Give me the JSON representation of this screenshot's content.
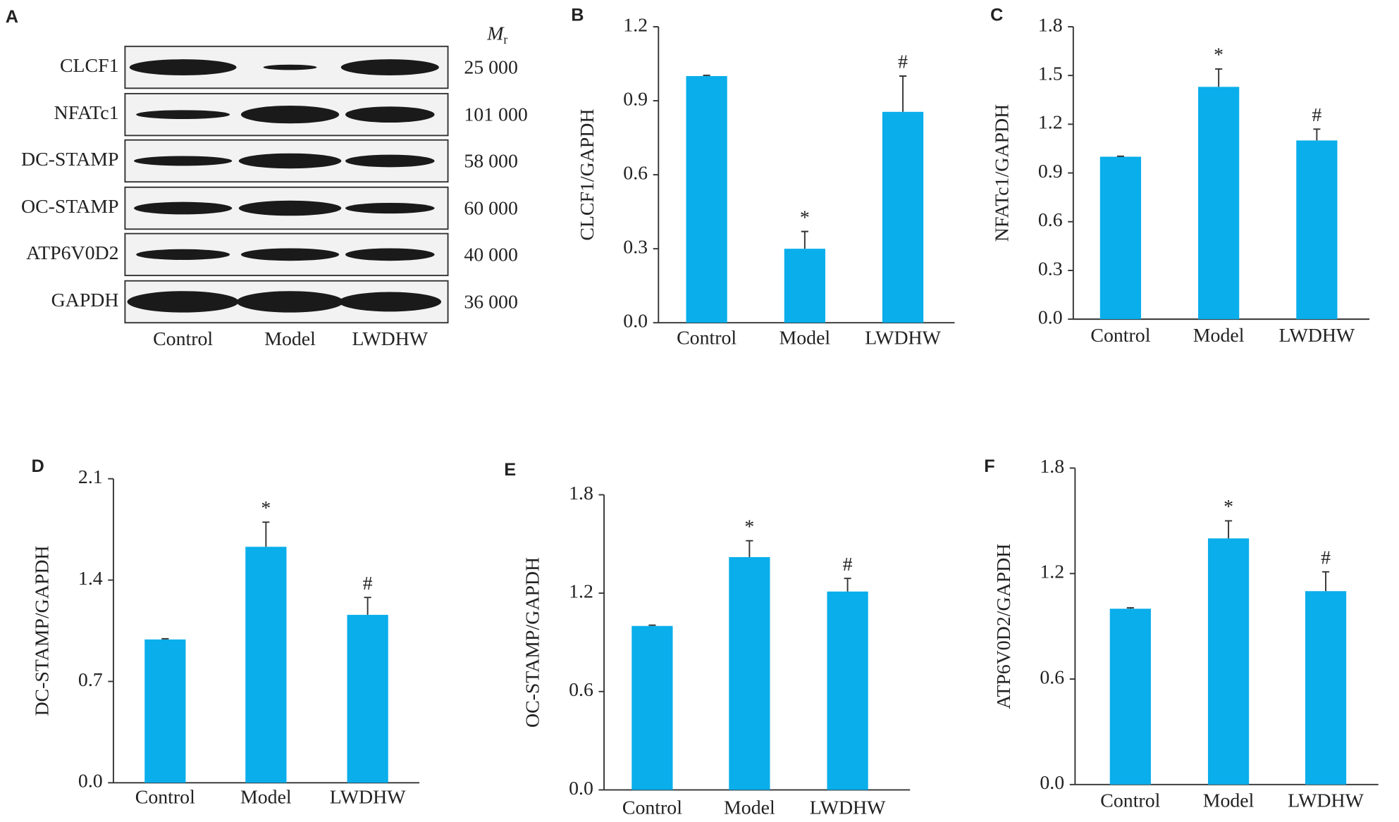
{
  "blot": {
    "label": "A",
    "mr_header": {
      "symbol": "M",
      "subscript": "r"
    },
    "lanes": [
      "Control",
      "Model",
      "LWDHW"
    ],
    "rows": [
      {
        "protein": "CLCF1",
        "mr": "25 000"
      },
      {
        "protein": "NFATc1",
        "mr": "101  000"
      },
      {
        "protein": "DC-STAMP",
        "mr": "58 000"
      },
      {
        "protein": "OC-STAMP",
        "mr": "60 000"
      },
      {
        "protein": "ATP6V0D2",
        "mr": "40 000"
      },
      {
        "protein": "GAPDH",
        "mr": "36 000"
      }
    ]
  },
  "chart_data": [
    {
      "type": "bar",
      "panel": "B",
      "y_label": "CLCF1/GAPDH",
      "categories": [
        "Control",
        "Model",
        "LWDHW"
      ],
      "values": [
        1.0,
        0.3,
        0.855
      ],
      "errors": [
        0.003,
        0.07,
        0.145
      ],
      "annotations": [
        null,
        "*",
        "#"
      ],
      "color": "#0aaeea",
      "ylim": [
        0,
        1.2
      ],
      "yticks": [
        {
          "value": 0,
          "label": "0.0"
        },
        0.3,
        0.6,
        0.9,
        1.2
      ]
    },
    {
      "type": "bar",
      "panel": "C",
      "y_label": "NFATc1/GAPDH",
      "categories": [
        "Control",
        "Model",
        "LWDHW"
      ],
      "values": [
        1.0,
        1.43,
        1.1
      ],
      "errors": [
        0.003,
        0.11,
        0.07
      ],
      "annotations": [
        null,
        "*",
        "#"
      ],
      "color": "#0aaeea",
      "ylim": [
        0,
        1.8
      ],
      "yticks": [
        {
          "value": 0,
          "label": "0.0"
        },
        0.3,
        0.6,
        0.9,
        1.2,
        1.5,
        1.8
      ]
    },
    {
      "type": "bar",
      "panel": "D",
      "y_label": "DC-STAMP/GAPDH",
      "categories": [
        "Control",
        "Model",
        "LWDHW"
      ],
      "values": [
        0.99,
        1.63,
        1.16
      ],
      "errors": [
        0.005,
        0.17,
        0.12
      ],
      "annotations": [
        null,
        "*",
        "#"
      ],
      "color": "#0aaeea",
      "ylim": [
        0,
        2.1
      ],
      "yticks": [
        {
          "value": 0,
          "label": "0.0"
        },
        0.7,
        1.4,
        2.1
      ]
    },
    {
      "type": "bar",
      "panel": "E",
      "y_label": "OC-STAMP/GAPDH",
      "categories": [
        "Control",
        "Model",
        "LWDHW"
      ],
      "values": [
        1.0,
        1.42,
        1.21
      ],
      "errors": [
        0.005,
        0.1,
        0.08
      ],
      "annotations": [
        null,
        "*",
        "#"
      ],
      "color": "#0aaeea",
      "ylim": [
        0,
        1.8
      ],
      "yticks": [
        {
          "value": 0,
          "label": "0.0"
        },
        0.6,
        1.2,
        1.8
      ]
    },
    {
      "type": "bar",
      "panel": "F",
      "y_label": "ATP6V0D2/GAPDH",
      "categories": [
        "Control",
        "Model",
        "LWDHW"
      ],
      "values": [
        1.0,
        1.4,
        1.1
      ],
      "errors": [
        0.005,
        0.1,
        0.11
      ],
      "annotations": [
        null,
        "*",
        "#"
      ],
      "color": "#0aaeea",
      "ylim": [
        0,
        1.8
      ],
      "yticks": [
        {
          "value": 0,
          "label": "0.0"
        },
        0.6,
        1.2,
        1.8
      ]
    }
  ]
}
